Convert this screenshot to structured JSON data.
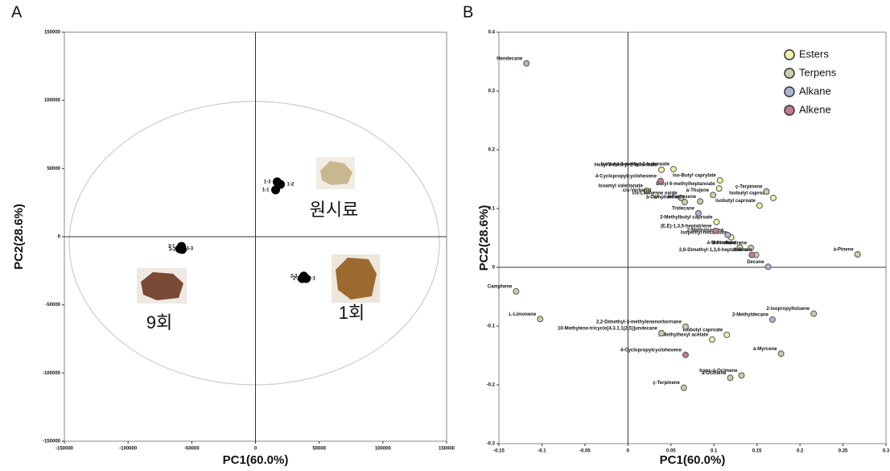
{
  "chart_data": [
    {
      "type": "scatter",
      "panel_label": "A",
      "x_label": "PC1(60.0%)",
      "y_label": "PC2(28.6%)",
      "xlim": [
        -150000,
        150000
      ],
      "ylim": [
        -150000,
        150000
      ],
      "xticks": [
        -150000,
        -100000,
        -50000,
        0,
        50000,
        100000,
        150000
      ],
      "yticks": [
        -150000,
        -100000,
        -50000,
        0,
        50000,
        100000,
        150000
      ],
      "color": "#000000",
      "point_labels": [
        "1-3",
        "1-2",
        "1-1",
        "2-3",
        "2-1",
        "2-2",
        "3-1",
        "3-3",
        "3-2"
      ],
      "x": [
        17000,
        19600,
        15800,
        37900,
        36600,
        39800,
        -58100,
        -59400,
        -57500
      ],
      "values": [
        40200,
        38400,
        34300,
        -28900,
        -30700,
        -30700,
        -7100,
        -8900,
        -9400
      ],
      "group_labels": [
        "원시료",
        "9회",
        "1회"
      ]
    },
    {
      "type": "scatter",
      "panel_label": "B",
      "x_label": "PC1(60.0%)",
      "y_label": "PC2(28.6%)",
      "xlim": [
        -0.15,
        0.3
      ],
      "ylim": [
        -0.3,
        0.4
      ],
      "xticks": [
        -0.15,
        -0.1,
        -0.05,
        0,
        0.05,
        0.1,
        0.15,
        0.2,
        0.25,
        0.3
      ],
      "yticks": [
        -0.3,
        -0.2,
        -0.1,
        0,
        0.1,
        0.2,
        0.3,
        0.4
      ],
      "legend": "upper right",
      "series": [
        {
          "name": "Esters",
          "color": "#f2f0a8",
          "point_labels": [
            "Isobutyl 3-methyl-2-butenoate",
            "Hexyl 3-methyl-2-butenoate",
            "Butyl 6-methylheptanoate",
            "iso-Butyl caprylate",
            "Isoamyl valerianate",
            "Isobutyl caproate",
            "Isobutyl caproate",
            "2-Methylbutyl caproate",
            "Isopentyl hexanoate",
            "Isobutyl caproate",
            "1-Methylhexyl acetate"
          ],
          "x": [
            0.053,
            0.039,
            0.106,
            0.107,
            0.022,
            0.169,
            0.153,
            0.103,
            0.12,
            0.115,
            0.098
          ],
          "values": [
            0.167,
            0.166,
            0.134,
            0.148,
            0.13,
            0.118,
            0.105,
            0.077,
            0.051,
            -0.115,
            -0.123
          ]
        },
        {
          "name": "Terpens",
          "color": "#c9cfa6",
          "point_labels": [
            "cis-Limonene oxide",
            "à-Thujene",
            "ç-Terpinene",
            "cis-Verbenol",
            "à-Campholenal",
            "à-Farnesene",
            "à-Phellandrene",
            "à-Muurolene",
            "Sabinen",
            "à-Pinene",
            "Camphene",
            "L-Limonene",
            "2-Isopropyltoluene",
            "2,2-Dimethyl-3-methylenenorbornane",
            "10-Methylene-tricyclo[4.3.1.1(2,5)]undecane",
            "à-Myrcene",
            "trans-à-Ocimene",
            "à-Ocimene",
            "ç-Terpinene"
          ],
          "x": [
            0.062,
            0.099,
            0.161,
            0.032,
            0.066,
            0.084,
            0.143,
            0.13,
            0.149,
            0.267,
            -0.13,
            -0.102,
            0.216,
            0.067,
            0.039,
            0.178,
            0.132,
            0.119,
            0.065
          ],
          "values": [
            0.118,
            0.123,
            0.129,
            0.123,
            0.111,
            0.112,
            0.033,
            0.034,
            0.021,
            0.022,
            -0.041,
            -0.088,
            -0.079,
            -0.101,
            -0.112,
            -0.147,
            -0.184,
            -0.188,
            -0.205
          ]
        },
        {
          "name": "Alkane",
          "color": "#aab8d6",
          "point_labels": [
            "Hendecane",
            "Tridecane",
            "2-Methylnonane",
            "Decane",
            "2-Methyldecane"
          ],
          "x": [
            -0.118,
            0.082,
            0.116,
            0.163,
            0.168
          ],
          "values": [
            0.347,
            0.092,
            0.055,
            0.001,
            -0.089
          ]
        },
        {
          "name": "Alkene",
          "color": "#c47a96",
          "point_labels": [
            "4-Cyclopropylcyclohexene",
            "(E,E)-1,3,5-heptatriene",
            "2,6-Dimethyl-1,3,6-heptatriene",
            "4-Cyclopropylcyclohexene"
          ],
          "x": [
            0.038,
            0.102,
            0.144,
            0.067
          ],
          "values": [
            0.147,
            0.062,
            0.021,
            -0.149
          ]
        }
      ]
    }
  ]
}
